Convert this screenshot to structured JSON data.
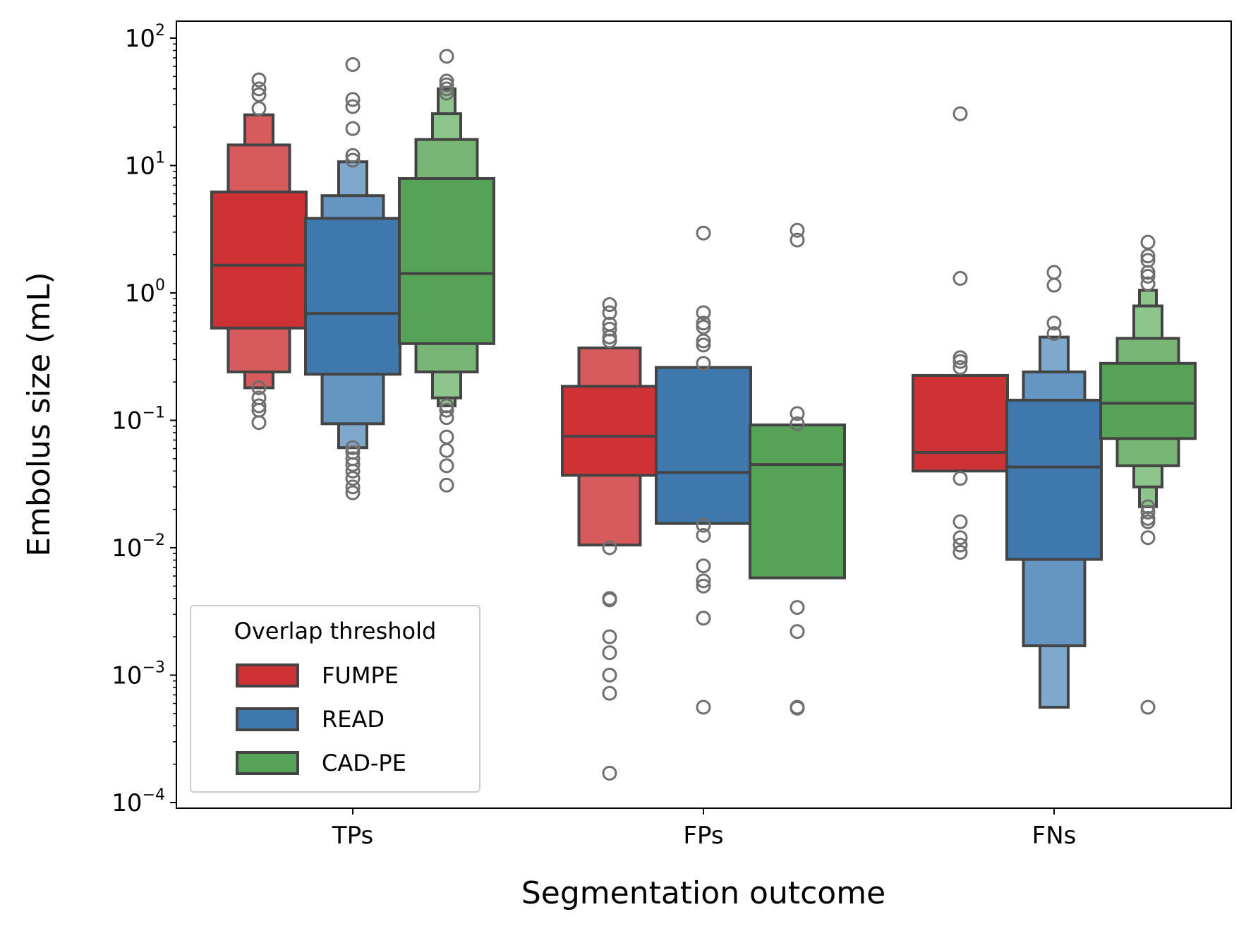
{
  "chart_data": {
    "type": "boxen",
    "xlabel": "Segmentation outcome",
    "ylabel": "Embolus size (mL)",
    "yscale": "log",
    "ylim": [
      0.0001,
      100
    ],
    "ytick_exponents": [
      "2",
      "1",
      "0",
      "−1",
      "−2",
      "−3",
      "−4"
    ],
    "ytick_base": "10",
    "categories": [
      "TPs",
      "FPs",
      "FNs"
    ],
    "legend": {
      "title": "Overlap threshold",
      "placement": "lower-left",
      "entries": [
        "FUMPE",
        "READ",
        "CAD-PE"
      ]
    },
    "series": [
      {
        "name": "FUMPE",
        "colors": {
          "inner": "#cf3235",
          "level1": "#d75b5d",
          "edge": "#444444"
        },
        "groups": [
          {
            "category": "TPs",
            "median": 1.65,
            "levels": [
              [
                0.53,
                6.2
              ],
              [
                0.24,
                14.5
              ],
              [
                0.18,
                25
              ]
            ],
            "outliers": [
              47,
              40,
              36,
              28,
              0.18,
              0.15,
              0.13,
              0.12,
              0.096
            ]
          },
          {
            "category": "FPs",
            "median": 0.075,
            "levels": [
              [
                0.037,
                0.185
              ],
              [
                0.0105,
                0.37
              ]
            ],
            "outliers": [
              0.81,
              0.7,
              0.57,
              0.52,
              0.45,
              0.42,
              0.01,
              0.004,
              0.0039,
              0.002,
              0.0015,
              0.001,
              0.00072,
              0.00017
            ]
          },
          {
            "category": "FNs",
            "median": 0.056,
            "levels": [
              [
                0.04,
                0.225
              ]
            ],
            "outliers": [
              25.5,
              1.3,
              0.31,
              0.29,
              0.26,
              0.035,
              0.016,
              0.012,
              0.0105,
              0.0092
            ]
          }
        ]
      },
      {
        "name": "READ",
        "colors": {
          "inner": "#3f78ad",
          "level1": "#6595c1",
          "level2": "#7ea8cc",
          "edge": "#444444"
        },
        "groups": [
          {
            "category": "TPs",
            "median": 0.69,
            "levels": [
              [
                0.23,
                3.85
              ],
              [
                0.094,
                5.8
              ],
              [
                0.061,
                10.7
              ]
            ],
            "outliers": [
              62,
              33,
              29,
              19.5,
              12,
              11,
              0.061,
              0.056,
              0.05,
              0.045,
              0.04,
              0.035,
              0.03,
              0.027
            ]
          },
          {
            "category": "FPs",
            "median": 0.039,
            "levels": [
              [
                0.0155,
                0.26
              ]
            ],
            "outliers": [
              2.95,
              0.7,
              0.58,
              0.54,
              0.42,
              0.39,
              0.28,
              0.015,
              0.0125,
              0.0072,
              0.0055,
              0.005,
              0.0028,
              0.00056
            ]
          },
          {
            "category": "FNs",
            "median": 0.043,
            "levels": [
              [
                0.0081,
                0.144
              ],
              [
                0.0017,
                0.24
              ],
              [
                0.00056,
                0.45
              ]
            ],
            "outliers": [
              1.45,
              1.15,
              0.58,
              0.48
            ]
          }
        ]
      },
      {
        "name": "CAD-PE",
        "colors": {
          "inner": "#56a257",
          "level1": "#78b675",
          "level2": "#8ec58c",
          "edge": "#444444"
        },
        "groups": [
          {
            "category": "TPs",
            "median": 1.42,
            "levels": [
              [
                0.4,
                7.9
              ],
              [
                0.24,
                16
              ],
              [
                0.15,
                25.5
              ],
              [
                0.13,
                40
              ]
            ],
            "outliers": [
              72,
              46,
              43,
              40,
              37,
              0.13,
              0.12,
              0.105,
              0.074,
              0.058,
              0.044,
              0.031
            ]
          },
          {
            "category": "FPs",
            "median": 0.045,
            "levels": [
              [
                0.0058,
                0.092
              ]
            ],
            "outliers": [
              3.1,
              2.6,
              0.113,
              0.094,
              0.0034,
              0.0022,
              0.00056,
              0.00055
            ]
          },
          {
            "category": "FNs",
            "median": 0.136,
            "levels": [
              [
                0.072,
                0.28
              ],
              [
                0.044,
                0.44
              ],
              [
                0.03,
                0.79
              ],
              [
                0.021,
                1.05
              ]
            ],
            "outliers": [
              2.5,
              1.95,
              1.8,
              1.45,
              1.35,
              1.18,
              0.021,
              0.019,
              0.017,
              0.016,
              0.012,
              0.00056
            ]
          }
        ]
      }
    ]
  }
}
